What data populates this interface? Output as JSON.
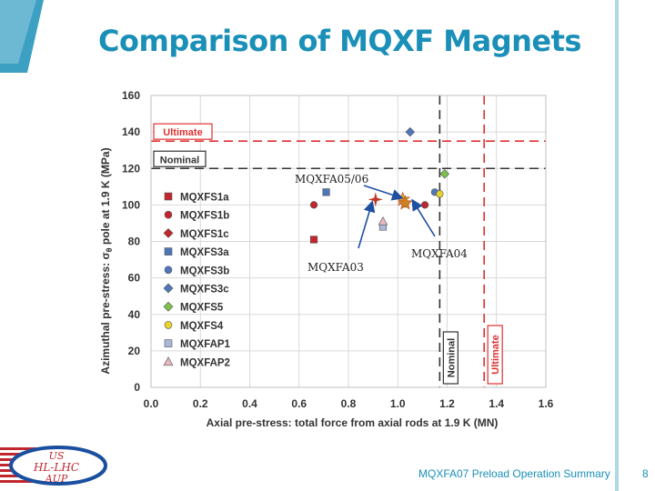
{
  "slide": {
    "title": "Comparison of MQXF Magnets",
    "footer": "MQXFA07 Preload Operation Summary",
    "page_number": "8",
    "logo_lines": [
      "US",
      "HL-LHC",
      "AUP"
    ]
  },
  "annotations": [
    {
      "text": "MQXFA05/06",
      "target": [
        1.02,
        102
      ]
    },
    {
      "text": "MQXFA03",
      "target": [
        0.91,
        103
      ]
    },
    {
      "text": "MQXFA04",
      "target": [
        1.04,
        104
      ]
    }
  ],
  "chart_data": {
    "type": "scatter",
    "title": "",
    "xlabel": "Axial pre-stress: total force from axial rods at 1.9 K (MN)",
    "ylabel_prefix": "Azimuthal pre-stress: ",
    "ylabel_sigma": "σ",
    "ylabel_sub": "θ",
    "ylabel_suffix": " pole at 1.9 K (MPa)",
    "xlim": [
      0.0,
      1.6
    ],
    "ylim": [
      0,
      160
    ],
    "x_ticks": [
      "0.0",
      "0.2",
      "0.4",
      "0.6",
      "0.8",
      "1.0",
      "1.2",
      "1.4",
      "1.6"
    ],
    "y_ticks": [
      "0",
      "20",
      "40",
      "60",
      "80",
      "100",
      "120",
      "140",
      "160"
    ],
    "grid": true,
    "legend_position": "left",
    "reference_lines": [
      {
        "label": "Ultimate",
        "orientation": "horizontal",
        "value": 135,
        "color": "#e03030"
      },
      {
        "label": "Nominal",
        "orientation": "horizontal",
        "value": 120,
        "color": "#333333"
      },
      {
        "label": "Nominal",
        "orientation": "vertical",
        "value": 1.17,
        "color": "#333333"
      },
      {
        "label": "Ultimate",
        "orientation": "vertical",
        "value": 1.35,
        "color": "#e03030"
      }
    ],
    "series": [
      {
        "name": "MQXFS1a",
        "marker": "square",
        "color": "#c0262d",
        "points": [
          [
            0.66,
            81
          ]
        ]
      },
      {
        "name": "MQXFS1b",
        "marker": "circle",
        "color": "#c0262d",
        "points": [
          [
            0.66,
            100
          ],
          [
            1.11,
            100
          ]
        ]
      },
      {
        "name": "MQXFS1c",
        "marker": "diamond",
        "color": "#c0262d",
        "points": [
          [
            1.03,
            101
          ]
        ]
      },
      {
        "name": "MQXFS3a",
        "marker": "square",
        "color": "#4f76b8",
        "points": [
          [
            0.71,
            107
          ]
        ]
      },
      {
        "name": "MQXFS3b",
        "marker": "circle",
        "color": "#4f76b8",
        "points": [
          [
            1.15,
            107
          ]
        ]
      },
      {
        "name": "MQXFS3c",
        "marker": "diamond",
        "color": "#4f76b8",
        "points": [
          [
            1.05,
            140
          ]
        ]
      },
      {
        "name": "MQXFS5",
        "marker": "diamond",
        "color": "#7dc04a",
        "points": [
          [
            1.19,
            117
          ]
        ]
      },
      {
        "name": "MQXFS4",
        "marker": "circle",
        "color": "#e8d32c",
        "points": [
          [
            1.17,
            106
          ]
        ]
      },
      {
        "name": "MQXFAP1",
        "marker": "square",
        "color": "#aab8d8",
        "points": [
          [
            0.94,
            88
          ]
        ]
      },
      {
        "name": "MQXFAP2",
        "marker": "triangle",
        "color": "#e6b8c0",
        "points": [
          [
            0.94,
            91
          ]
        ]
      }
    ],
    "extra_markers": [
      {
        "marker": "star",
        "color": "#e8a030",
        "point": [
          1.02,
          103
        ]
      },
      {
        "marker": "star",
        "color": "#d08020",
        "point": [
          1.03,
          101
        ]
      },
      {
        "marker": "cross-star",
        "color": "#cc3030",
        "point": [
          0.91,
          103
        ]
      }
    ]
  }
}
